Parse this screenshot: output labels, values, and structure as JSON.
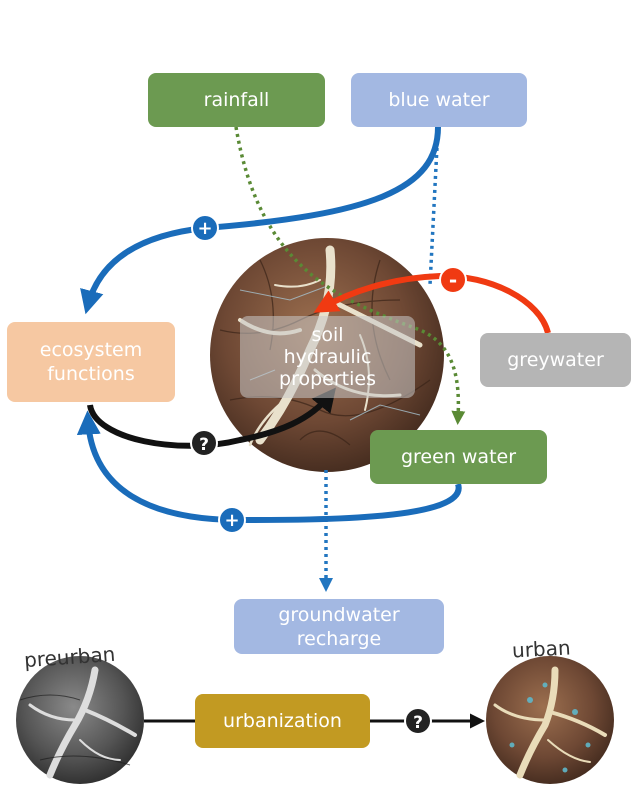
{
  "nodes": {
    "rainfall": "rainfall",
    "blue_water": "blue water",
    "ecosystem_functions": [
      "ecosystem",
      "functions"
    ],
    "soil": [
      "soil",
      "hydraulic",
      "properties"
    ],
    "greywater": "greywater",
    "green_water": "green water",
    "groundwater": [
      "groundwater",
      "recharge"
    ],
    "urbanization": "urbanization"
  },
  "signs": {
    "blue_to_ecosystem": "+",
    "green_to_ecosystem": "+",
    "greywater_to_soil": "-",
    "ecosystem_to_soil": "?",
    "urbanization_effect": "?"
  },
  "stages": {
    "before": "preurban",
    "after": "urban"
  },
  "colors": {
    "green_box": "#6c9a51",
    "blue_box": "#a3b8e2",
    "ecosystem_box": "#f6c8a2",
    "grey_box": "#b5b5b5",
    "urban_box": "#c29a22",
    "blue_arrow": "#1a6cba",
    "red_arrow": "#f03a12",
    "dotted_green": "#5a8a35",
    "dotted_blue": "#2276c0"
  }
}
